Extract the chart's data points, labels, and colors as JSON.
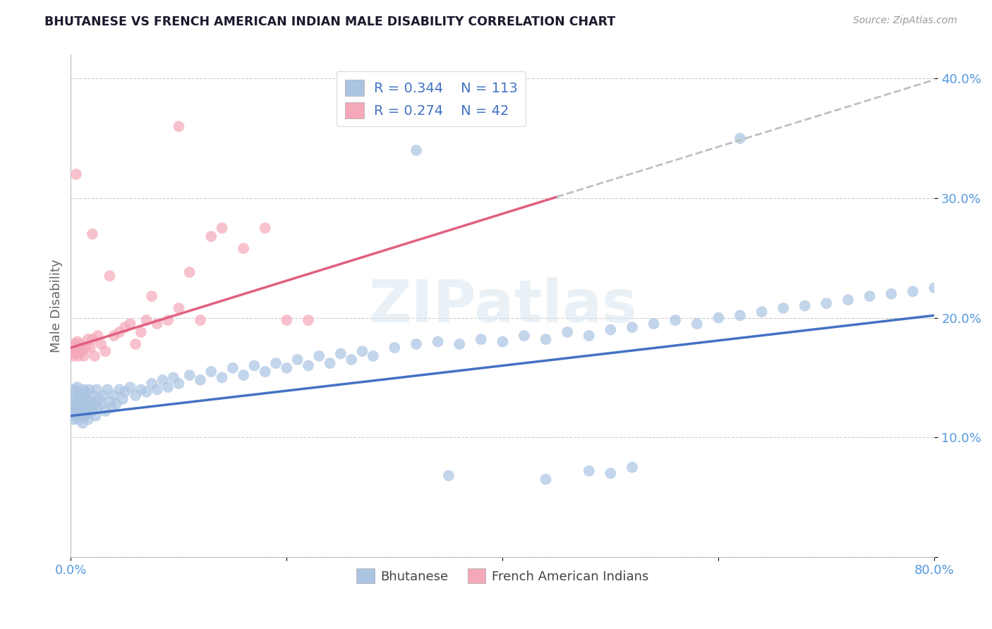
{
  "title": "BHUTANESE VS FRENCH AMERICAN INDIAN MALE DISABILITY CORRELATION CHART",
  "source": "Source: ZipAtlas.com",
  "ylabel": "Male Disability",
  "xlabel_label_bhutanese": "Bhutanese",
  "xlabel_label_french": "French American Indians",
  "xmin": 0.0,
  "xmax": 0.8,
  "ymin": 0.0,
  "ymax": 0.42,
  "bhutanese_color": "#aac4e2",
  "french_color": "#f4a8b8",
  "bhutanese_line_color": "#4472c4",
  "french_line_color": "#e06080",
  "dashed_color": "#c0c0c0",
  "R_bhutanese": 0.344,
  "N_bhutanese": 113,
  "R_french": 0.274,
  "N_french": 42,
  "legend_text_color": "#4472c4",
  "watermark": "ZIPatlas",
  "blue_intercept": 0.118,
  "blue_slope": 0.105,
  "pink_intercept": 0.175,
  "pink_slope": 0.28,
  "bhutanese_x": [
    0.001,
    0.002,
    0.002,
    0.003,
    0.003,
    0.004,
    0.004,
    0.005,
    0.005,
    0.006,
    0.006,
    0.007,
    0.007,
    0.008,
    0.008,
    0.009,
    0.009,
    0.01,
    0.01,
    0.011,
    0.011,
    0.012,
    0.012,
    0.013,
    0.013,
    0.014,
    0.014,
    0.015,
    0.015,
    0.016,
    0.016,
    0.017,
    0.018,
    0.019,
    0.02,
    0.021,
    0.022,
    0.023,
    0.024,
    0.025,
    0.026,
    0.028,
    0.03,
    0.032,
    0.034,
    0.036,
    0.038,
    0.04,
    0.042,
    0.045,
    0.048,
    0.05,
    0.055,
    0.06,
    0.065,
    0.07,
    0.075,
    0.08,
    0.085,
    0.09,
    0.095,
    0.1,
    0.11,
    0.12,
    0.13,
    0.14,
    0.15,
    0.16,
    0.17,
    0.18,
    0.19,
    0.2,
    0.21,
    0.22,
    0.23,
    0.24,
    0.25,
    0.26,
    0.27,
    0.28,
    0.3,
    0.32,
    0.34,
    0.36,
    0.38,
    0.4,
    0.42,
    0.44,
    0.46,
    0.48,
    0.5,
    0.52,
    0.54,
    0.56,
    0.58,
    0.6,
    0.62,
    0.64,
    0.66,
    0.68,
    0.7,
    0.72,
    0.74,
    0.76,
    0.78,
    0.8,
    0.32,
    0.62,
    0.35,
    0.44,
    0.5,
    0.52,
    0.48
  ],
  "bhutanese_y": [
    0.12,
    0.13,
    0.115,
    0.125,
    0.14,
    0.118,
    0.132,
    0.122,
    0.138,
    0.128,
    0.142,
    0.115,
    0.135,
    0.12,
    0.128,
    0.125,
    0.118,
    0.13,
    0.122,
    0.135,
    0.112,
    0.125,
    0.14,
    0.118,
    0.13,
    0.122,
    0.138,
    0.12,
    0.132,
    0.128,
    0.115,
    0.14,
    0.125,
    0.13,
    0.122,
    0.135,
    0.128,
    0.118,
    0.14,
    0.125,
    0.132,
    0.128,
    0.135,
    0.122,
    0.14,
    0.13,
    0.125,
    0.135,
    0.128,
    0.14,
    0.132,
    0.138,
    0.142,
    0.135,
    0.14,
    0.138,
    0.145,
    0.14,
    0.148,
    0.142,
    0.15,
    0.145,
    0.152,
    0.148,
    0.155,
    0.15,
    0.158,
    0.152,
    0.16,
    0.155,
    0.162,
    0.158,
    0.165,
    0.16,
    0.168,
    0.162,
    0.17,
    0.165,
    0.172,
    0.168,
    0.175,
    0.178,
    0.18,
    0.178,
    0.182,
    0.18,
    0.185,
    0.182,
    0.188,
    0.185,
    0.19,
    0.192,
    0.195,
    0.198,
    0.195,
    0.2,
    0.202,
    0.205,
    0.208,
    0.21,
    0.212,
    0.215,
    0.218,
    0.22,
    0.222,
    0.225,
    0.34,
    0.35,
    0.068,
    0.065,
    0.07,
    0.075,
    0.072
  ],
  "french_x": [
    0.001,
    0.002,
    0.003,
    0.004,
    0.005,
    0.006,
    0.007,
    0.008,
    0.009,
    0.01,
    0.012,
    0.014,
    0.016,
    0.018,
    0.02,
    0.022,
    0.025,
    0.028,
    0.032,
    0.036,
    0.04,
    0.045,
    0.05,
    0.055,
    0.06,
    0.065,
    0.07,
    0.075,
    0.08,
    0.09,
    0.1,
    0.11,
    0.12,
    0.13,
    0.14,
    0.16,
    0.18,
    0.2,
    0.22,
    0.005,
    0.02,
    0.1
  ],
  "french_y": [
    0.175,
    0.168,
    0.178,
    0.17,
    0.172,
    0.18,
    0.168,
    0.175,
    0.178,
    0.172,
    0.168,
    0.175,
    0.182,
    0.175,
    0.182,
    0.168,
    0.185,
    0.178,
    0.172,
    0.235,
    0.185,
    0.188,
    0.192,
    0.195,
    0.178,
    0.188,
    0.198,
    0.218,
    0.195,
    0.198,
    0.208,
    0.238,
    0.198,
    0.268,
    0.275,
    0.258,
    0.275,
    0.198,
    0.198,
    0.32,
    0.27,
    0.36
  ]
}
